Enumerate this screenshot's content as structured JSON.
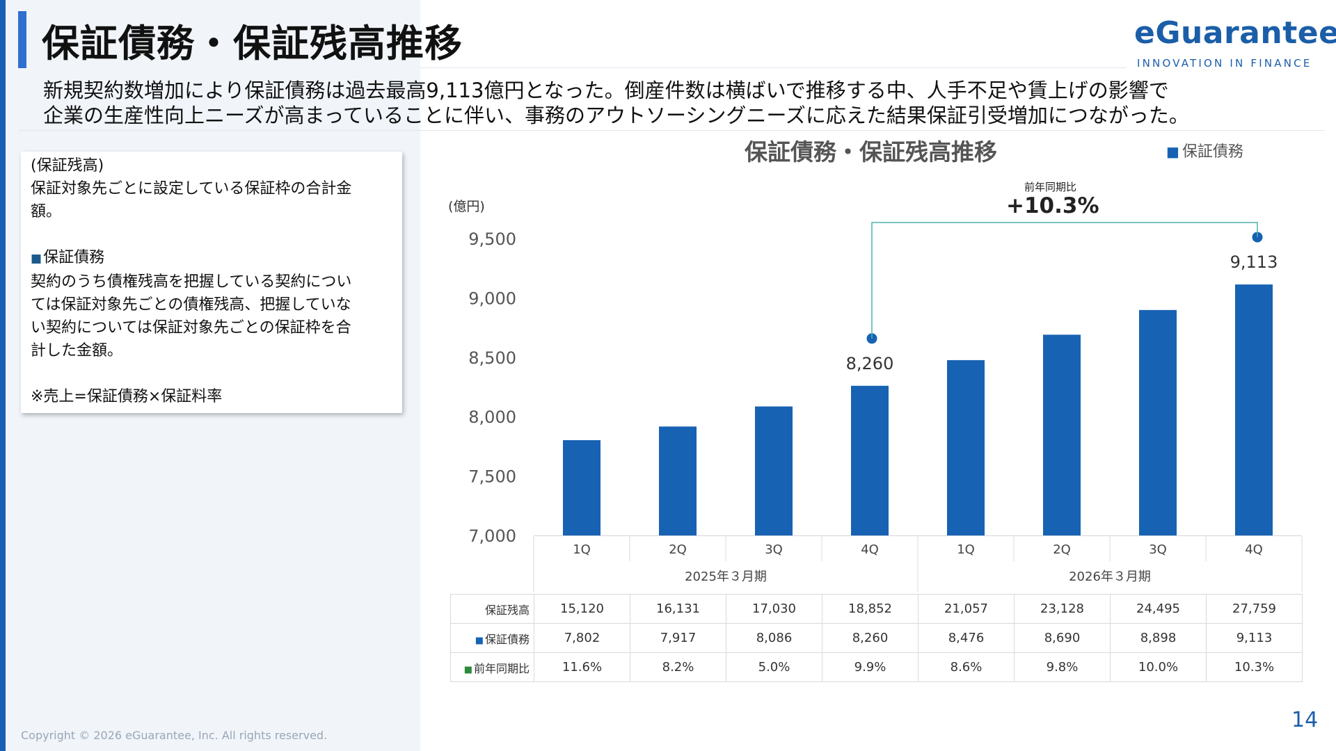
{
  "title": "保証債務・保証残高推移",
  "logo": {
    "name": "eGuarantee",
    "tagline": "INNOVATION IN FINANCE"
  },
  "lead": {
    "line1": "新規契約数増加により保証債務は過去最高9,113億円となった。倒産件数は横ばいで推移する中、人手不足や賃上げの影響で",
    "line2": "企業の生産性向上ニーズが高まっていることに伴い、事務のアウトソーシングニーズに応えた結果保証引受増加につながった。"
  },
  "note": {
    "heading": "(保証残高)",
    "zandaka_desc_1": "保証対象先ごとに設定している保証枠の合計金",
    "zandaka_desc_2": "額。",
    "saimu_heading": "保証債務",
    "saimu_desc_1": "契約のうち債権残高を把握している契約につい",
    "saimu_desc_2": "ては保証対象先ごとの債権残高、把握していな",
    "saimu_desc_3": "い契約については保証対象先ごとの保証枠を合",
    "saimu_desc_4": "計した金額。",
    "formula": "※売上=保証債務×保証料率"
  },
  "legend_marker": "■",
  "chart_data": {
    "type": "bar",
    "title": "保証債務・保証残高推移",
    "legend": "保証債務",
    "ylabel": "(億円)",
    "ylim": [
      7000,
      9500
    ],
    "yticks": [
      "9,500",
      "9,000",
      "8,500",
      "8,000",
      "7,500",
      "7,000"
    ],
    "categories": [
      "1Q",
      "2Q",
      "3Q",
      "4Q",
      "1Q",
      "2Q",
      "3Q",
      "4Q"
    ],
    "groups": [
      "2025年３月期",
      "2026年３月期"
    ],
    "series": [
      {
        "name": "保証債務",
        "values": [
          7802,
          7917,
          8086,
          8260,
          8476,
          8690,
          8898,
          9113
        ]
      }
    ],
    "data_labels": {
      "3": "8,260",
      "7": "9,113"
    },
    "annotation": {
      "label": "前年同期比",
      "value": "+10.3%"
    },
    "colors": {
      "bar": "#1762b3",
      "bracket": "#4fb3a9",
      "dot": "#1762b3"
    }
  },
  "table": {
    "rows": [
      {
        "label": "保証残高",
        "marker": "",
        "values": [
          "15,120",
          "16,131",
          "17,030",
          "18,852",
          "21,057",
          "23,128",
          "24,495",
          "27,759"
        ]
      },
      {
        "label": "保証債務",
        "marker": "■",
        "values": [
          "7,802",
          "7,917",
          "8,086",
          "8,260",
          "8,476",
          "8,690",
          "8,898",
          "9,113"
        ]
      },
      {
        "label": "前年同期比",
        "marker": "■",
        "values": [
          "11.6%",
          "8.2%",
          "5.0%",
          "9.9%",
          "8.6%",
          "9.8%",
          "10.0%",
          "10.3%"
        ]
      }
    ]
  },
  "footer": "Copyright © 2026 eGuarantee, Inc. All rights reserved.",
  "page_number": "14"
}
